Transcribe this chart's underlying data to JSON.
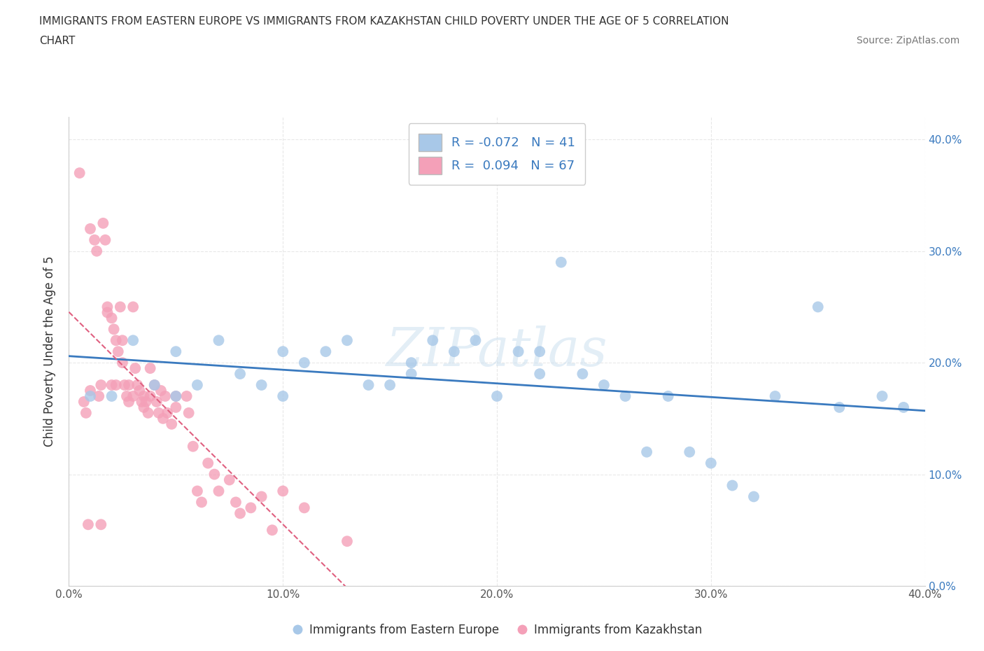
{
  "title_line1": "IMMIGRANTS FROM EASTERN EUROPE VS IMMIGRANTS FROM KAZAKHSTAN CHILD POVERTY UNDER THE AGE OF 5 CORRELATION",
  "title_line2": "CHART",
  "source": "Source: ZipAtlas.com",
  "ylabel": "Child Poverty Under the Age of 5",
  "r_eastern_europe": -0.072,
  "n_eastern_europe": 41,
  "r_kazakhstan": 0.094,
  "n_kazakhstan": 67,
  "eastern_europe_color": "#a8c8e8",
  "kazakhstan_color": "#f4a0b8",
  "eastern_europe_line_color": "#3a7abf",
  "kazakhstan_line_color": "#e06080",
  "background_color": "#ffffff",
  "grid_color": "#e8e8e8",
  "watermark": "ZIPatlas",
  "xlim": [
    0.0,
    0.4
  ],
  "ylim": [
    0.0,
    0.42
  ],
  "yticks": [
    0.0,
    0.1,
    0.2,
    0.3,
    0.4
  ],
  "xticks": [
    0.0,
    0.1,
    0.2,
    0.3,
    0.4
  ],
  "eastern_europe_x": [
    0.01,
    0.02,
    0.03,
    0.04,
    0.05,
    0.05,
    0.06,
    0.07,
    0.08,
    0.09,
    0.1,
    0.1,
    0.11,
    0.12,
    0.13,
    0.14,
    0.15,
    0.16,
    0.16,
    0.17,
    0.18,
    0.19,
    0.2,
    0.21,
    0.22,
    0.22,
    0.23,
    0.24,
    0.25,
    0.26,
    0.27,
    0.28,
    0.29,
    0.3,
    0.31,
    0.32,
    0.33,
    0.35,
    0.36,
    0.38,
    0.39
  ],
  "eastern_europe_y": [
    0.17,
    0.17,
    0.22,
    0.18,
    0.17,
    0.21,
    0.18,
    0.22,
    0.19,
    0.18,
    0.17,
    0.21,
    0.2,
    0.21,
    0.22,
    0.18,
    0.18,
    0.19,
    0.2,
    0.22,
    0.21,
    0.22,
    0.17,
    0.21,
    0.19,
    0.21,
    0.29,
    0.19,
    0.18,
    0.17,
    0.12,
    0.17,
    0.12,
    0.11,
    0.09,
    0.08,
    0.17,
    0.25,
    0.16,
    0.17,
    0.16
  ],
  "kazakhstan_x": [
    0.005,
    0.007,
    0.008,
    0.009,
    0.01,
    0.01,
    0.012,
    0.013,
    0.014,
    0.015,
    0.015,
    0.016,
    0.017,
    0.018,
    0.018,
    0.02,
    0.02,
    0.021,
    0.022,
    0.022,
    0.023,
    0.024,
    0.025,
    0.025,
    0.026,
    0.027,
    0.028,
    0.028,
    0.03,
    0.03,
    0.031,
    0.032,
    0.033,
    0.034,
    0.035,
    0.035,
    0.036,
    0.037,
    0.038,
    0.038,
    0.04,
    0.041,
    0.042,
    0.043,
    0.044,
    0.045,
    0.046,
    0.048,
    0.05,
    0.05,
    0.055,
    0.056,
    0.058,
    0.06,
    0.062,
    0.065,
    0.068,
    0.07,
    0.075,
    0.078,
    0.08,
    0.085,
    0.09,
    0.095,
    0.1,
    0.11,
    0.13
  ],
  "kazakhstan_y": [
    0.37,
    0.165,
    0.155,
    0.055,
    0.175,
    0.32,
    0.31,
    0.3,
    0.17,
    0.055,
    0.18,
    0.325,
    0.31,
    0.25,
    0.245,
    0.18,
    0.24,
    0.23,
    0.22,
    0.18,
    0.21,
    0.25,
    0.2,
    0.22,
    0.18,
    0.17,
    0.18,
    0.165,
    0.25,
    0.17,
    0.195,
    0.18,
    0.175,
    0.165,
    0.17,
    0.16,
    0.165,
    0.155,
    0.195,
    0.17,
    0.18,
    0.165,
    0.155,
    0.175,
    0.15,
    0.17,
    0.155,
    0.145,
    0.17,
    0.16,
    0.17,
    0.155,
    0.125,
    0.085,
    0.075,
    0.11,
    0.1,
    0.085,
    0.095,
    0.075,
    0.065,
    0.07,
    0.08,
    0.05,
    0.085,
    0.07,
    0.04
  ]
}
